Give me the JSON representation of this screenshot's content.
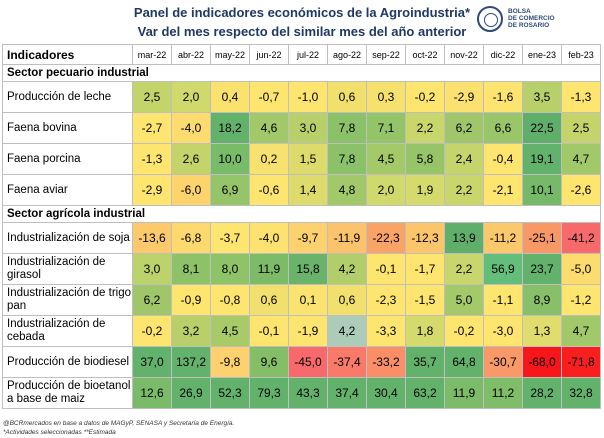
{
  "title_line1": "Panel de indicadores económicos de la Agroindustria*",
  "title_line2": "Var del mes respecto del similar mes del año anterior",
  "logo": {
    "line1": "BOLSA",
    "line2": "DE COMERCIO",
    "line3": "DE ROSARIO"
  },
  "header": {
    "indicators": "Indicadores",
    "months": [
      "mar-22",
      "abr-22",
      "may-22",
      "jun-22",
      "jul-22",
      "ago-22",
      "sep-22",
      "oct-22",
      "nov-22",
      "dic-22",
      "ene-23",
      "feb-23"
    ]
  },
  "sections": [
    {
      "title": "Sector pecuario industrial",
      "rows": [
        {
          "label": "Producción de leche",
          "values": [
            "2,5",
            "2,0",
            "0,4",
            "-0,7",
            "-1,0",
            "0,6",
            "0,3",
            "-0,2",
            "-2,9",
            "-1,6",
            "3,5",
            "-1,3"
          ],
          "colors": [
            "#c2d46a",
            "#cfd96c",
            "#fbe26f",
            "#fde570",
            "#fde570",
            "#f2e06e",
            "#f6e16e",
            "#fde570",
            "#fde170",
            "#fde370",
            "#b8d06a",
            "#fde570"
          ]
        },
        {
          "label": "Faena bovina",
          "values": [
            "-2,7",
            "-4,0",
            "18,2",
            "4,6",
            "3,0",
            "7,8",
            "7,1",
            "2,2",
            "6,2",
            "6,6",
            "22,5",
            "2,5"
          ],
          "colors": [
            "#fde570",
            "#fddc6f",
            "#63b26b",
            "#a1c869",
            "#b8d06a",
            "#8bc168",
            "#93c468",
            "#c8d66b",
            "#9fc769",
            "#9ac669",
            "#5faf6a",
            "#c4d46b"
          ]
        },
        {
          "label": "Faena porcina",
          "values": [
            "-1,3",
            "2,6",
            "10,0",
            "0,2",
            "1,5",
            "7,8",
            "4,5",
            "5,8",
            "2,4",
            "-0,4",
            "19,1",
            "4,7"
          ],
          "colors": [
            "#fde570",
            "#c4d46b",
            "#78bb69",
            "#f8e26f",
            "#dcdb6c",
            "#8bc168",
            "#a3c969",
            "#96c468",
            "#c6d56b",
            "#fde570",
            "#63b26b",
            "#a1c869"
          ]
        }
      ]
    }
  ]
}
